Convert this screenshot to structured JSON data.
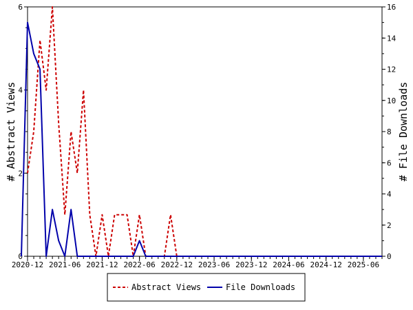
{
  "chart_data": {
    "type": "line",
    "ylabel_left": "# Abstract Views",
    "ylabel_right": "# File Downloads",
    "ylim_left": [
      0,
      6
    ],
    "ylim_right": [
      0,
      16
    ],
    "yticks_left": [
      "0",
      "2",
      "4",
      "6"
    ],
    "yticks_right": [
      "0",
      "2",
      "4",
      "6",
      "8",
      "10",
      "12",
      "14",
      "16"
    ],
    "xlim": [
      "2020-12",
      "2025-09"
    ],
    "x_tick_labels": [
      "2020-12",
      "2021-06",
      "2021-12",
      "2022-06",
      "2022-12",
      "2023-06",
      "2023-12",
      "2024-06",
      "2024-12",
      "2025-06"
    ],
    "legend_position": "bottom",
    "series": [
      {
        "name": "Abstract Views",
        "axis": "left",
        "color": "#cc0000",
        "style": "dashed",
        "points": [
          [
            "2020-12",
            2
          ],
          [
            "2021-01",
            3
          ],
          [
            "2021-02",
            5.2
          ],
          [
            "2021-03",
            4
          ],
          [
            "2021-04",
            6
          ],
          [
            "2021-05",
            3.2
          ],
          [
            "2021-06",
            1
          ],
          [
            "2021-07",
            3
          ],
          [
            "2021-08",
            2
          ],
          [
            "2021-09",
            4
          ],
          [
            "2021-10",
            1
          ],
          [
            "2021-11",
            0
          ],
          [
            "2021-12",
            1
          ],
          [
            "2022-01",
            0
          ],
          [
            "2022-02",
            1
          ],
          [
            "2022-03",
            1
          ],
          [
            "2022-04",
            1
          ],
          [
            "2022-05",
            0
          ],
          [
            "2022-06",
            1
          ],
          [
            "2022-07",
            0
          ],
          [
            "2022-08",
            0
          ],
          [
            "2022-09",
            0
          ],
          [
            "2022-10",
            0
          ],
          [
            "2022-11",
            1
          ],
          [
            "2022-12",
            0
          ],
          [
            "2023-01",
            0
          ],
          [
            "2025-09",
            0
          ]
        ]
      },
      {
        "name": "File Downloads",
        "axis": "right",
        "color": "#0000aa",
        "style": "solid",
        "points": [
          [
            "2020-11",
            0
          ],
          [
            "2020-12",
            15
          ],
          [
            "2021-01",
            13
          ],
          [
            "2021-02",
            12
          ],
          [
            "2021-03",
            0
          ],
          [
            "2021-04",
            3
          ],
          [
            "2021-05",
            1
          ],
          [
            "2021-06",
            0
          ],
          [
            "2021-07",
            3
          ],
          [
            "2021-08",
            0
          ],
          [
            "2021-09",
            0
          ],
          [
            "2021-10",
            0
          ],
          [
            "2021-11",
            0
          ],
          [
            "2021-12",
            0
          ],
          [
            "2022-01",
            0
          ],
          [
            "2022-02",
            0
          ],
          [
            "2022-03",
            0
          ],
          [
            "2022-04",
            0
          ],
          [
            "2022-05",
            0
          ],
          [
            "2022-06",
            1
          ],
          [
            "2022-07",
            0
          ],
          [
            "2025-09",
            0
          ]
        ]
      }
    ]
  }
}
